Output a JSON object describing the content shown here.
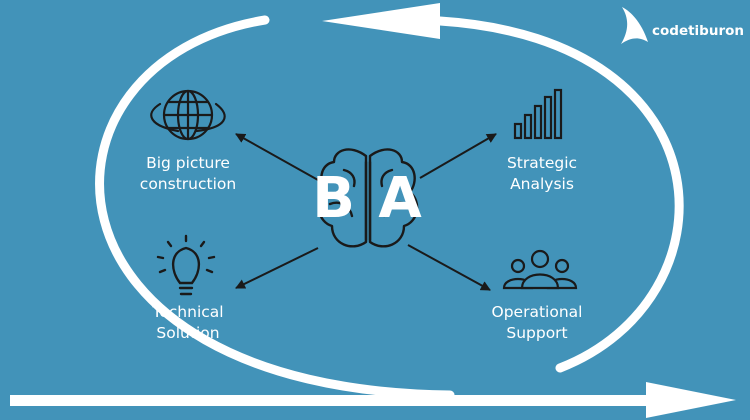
{
  "brand": {
    "name": "codetiburon",
    "logo_icon": "shark-fin-icon"
  },
  "center": {
    "text": "B A",
    "icon": "brain-icon"
  },
  "nodes": [
    {
      "id": "big-picture",
      "lines": [
        "Big picture",
        "construction"
      ],
      "icon": "globe-icon"
    },
    {
      "id": "strategic",
      "lines": [
        "Strategic",
        "Analysis"
      ],
      "icon": "bar-chart-icon"
    },
    {
      "id": "technical",
      "lines": [
        "Technical",
        "Solution"
      ],
      "icon": "lightbulb-icon"
    },
    {
      "id": "operational",
      "lines": [
        "Operational",
        "Support"
      ],
      "icon": "team-icon"
    }
  ],
  "colors": {
    "background": "#4293b9",
    "foreground": "#ffffff",
    "lines": "#1a1a1a"
  }
}
